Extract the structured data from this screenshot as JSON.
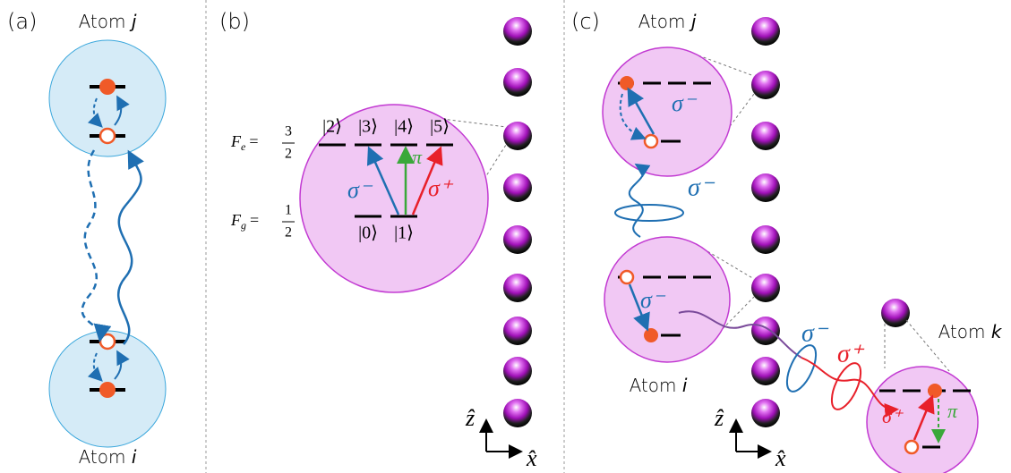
{
  "panel_a": {
    "label": "(a)",
    "atom_top": {
      "word": "Atom",
      "index": "j"
    },
    "atom_bottom": {
      "word": "Atom",
      "index": "i"
    }
  },
  "panel_b": {
    "label": "(b)",
    "excited": {
      "symbol": "F",
      "sub": "e",
      "equals": "=",
      "numerator": "3",
      "denominator": "2"
    },
    "ground": {
      "symbol": "F",
      "sub": "g",
      "equals": "=",
      "numerator": "1",
      "denominator": "2"
    },
    "excited_states": [
      "|2⟩",
      "|3⟩",
      "|4⟩",
      "|5⟩"
    ],
    "ground_states": [
      "|0⟩",
      "|1⟩"
    ],
    "transitions": [
      "σ⁻",
      "π",
      "σ⁺"
    ],
    "axes": [
      "ẑ",
      "x̂"
    ]
  },
  "panel_c": {
    "label": "(c)",
    "atom_j": {
      "word": "Atom",
      "index": "j"
    },
    "atom_i": {
      "word": "Atom",
      "index": "i"
    },
    "atom_k": {
      "word": "Atom",
      "index": "k"
    },
    "labels": [
      "σ⁻",
      "σ⁻",
      "σ⁻",
      "σ⁻",
      "σ⁺",
      "σ⁺",
      "π"
    ],
    "axes": [
      "ẑ",
      "x̂"
    ]
  }
}
